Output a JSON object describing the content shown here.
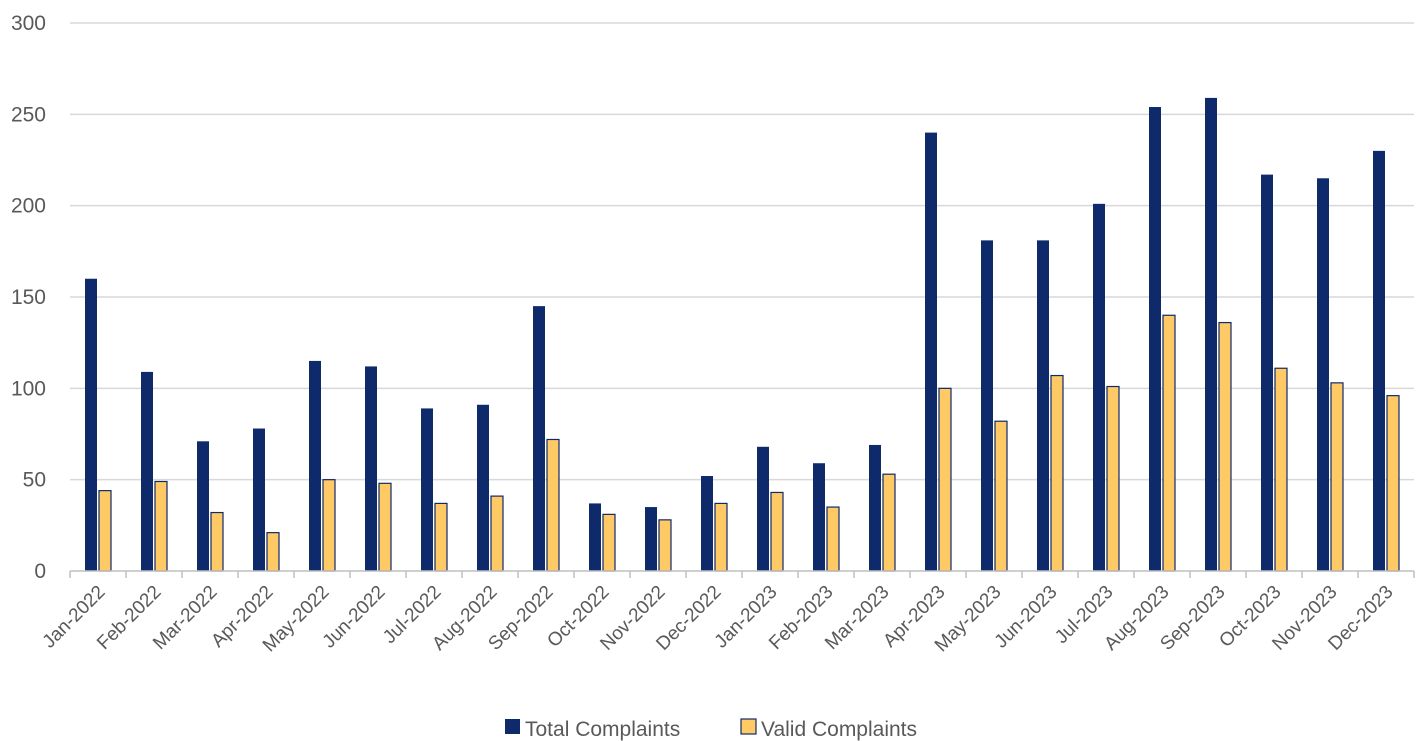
{
  "chart_data": {
    "type": "bar",
    "title": "",
    "xlabel": "",
    "ylabel": "",
    "ylim": [
      0,
      300
    ],
    "yticks": [
      0,
      50,
      100,
      150,
      200,
      250,
      300
    ],
    "grid": true,
    "legend_position": "bottom",
    "categories": [
      "Jan-2022",
      "Feb-2022",
      "Mar-2022",
      "Apr-2022",
      "May-2022",
      "Jun-2022",
      "Jul-2022",
      "Aug-2022",
      "Sep-2022",
      "Oct-2022",
      "Nov-2022",
      "Dec-2022",
      "Jan-2023",
      "Feb-2023",
      "Mar-2023",
      "Apr-2023",
      "May-2023",
      "Jun-2023",
      "Jul-2023",
      "Aug-2023",
      "Sep-2023",
      "Oct-2023",
      "Nov-2023",
      "Dec-2023"
    ],
    "series": [
      {
        "name": "Total Complaints",
        "color": "#0f2a6b",
        "values": [
          160,
          109,
          71,
          78,
          115,
          112,
          89,
          91,
          145,
          37,
          35,
          52,
          68,
          59,
          69,
          240,
          181,
          181,
          201,
          254,
          259,
          217,
          215,
          230
        ]
      },
      {
        "name": "Valid Complaints",
        "color": "#ffc966",
        "border": "#0f2a6b",
        "values": [
          44,
          49,
          32,
          21,
          50,
          48,
          37,
          41,
          72,
          31,
          28,
          37,
          43,
          35,
          53,
          100,
          82,
          107,
          101,
          140,
          136,
          111,
          103,
          96
        ]
      }
    ]
  }
}
